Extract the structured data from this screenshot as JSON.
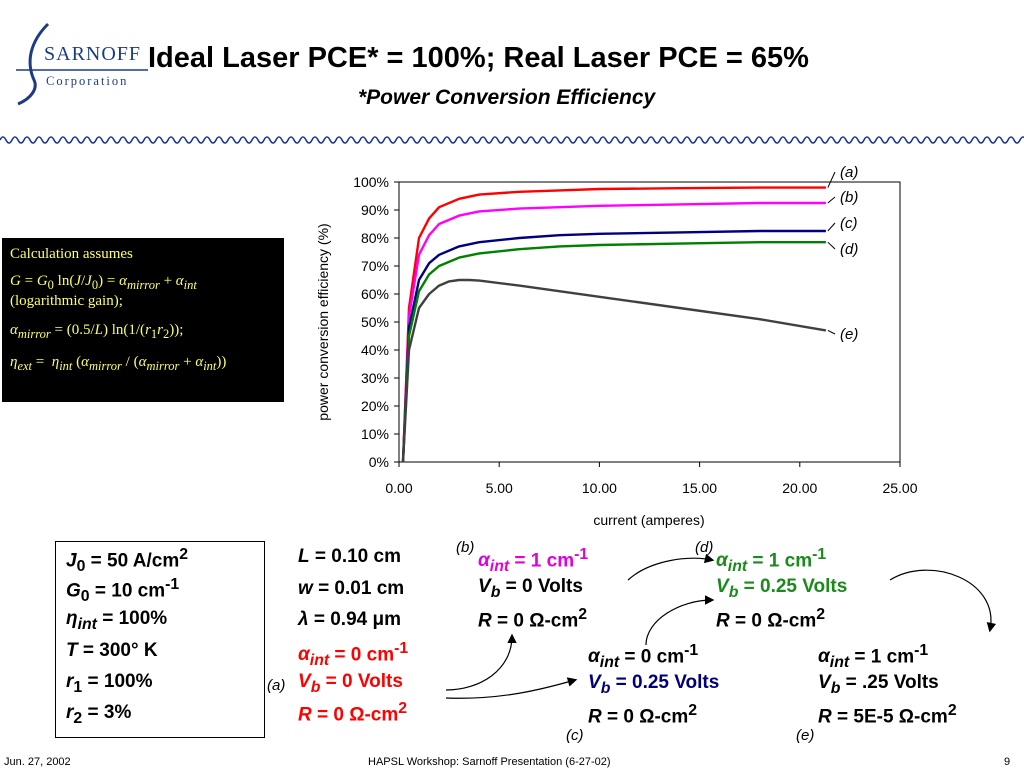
{
  "logo": {
    "line1": "SARNOFF",
    "line2": "Corporation"
  },
  "title": "Ideal Laser PCE* = 100%; Real Laser PCE = 65%",
  "subtitle": "*Power Conversion Efficiency",
  "calc": {
    "heading": "Calculation assumes",
    "gain_suffix": "(logarithmic gain);"
  },
  "chart_data": {
    "type": "line",
    "title": "",
    "xlabel": "current (amperes)",
    "ylabel": "power conversion efficiency (%)",
    "xlim": [
      0,
      25
    ],
    "ylim": [
      0,
      1
    ],
    "x_ticks": [
      "0.00",
      "5.00",
      "10.00",
      "15.00",
      "20.00",
      "25.00"
    ],
    "y_ticks": [
      "0%",
      "10%",
      "20%",
      "30%",
      "40%",
      "50%",
      "60%",
      "70%",
      "80%",
      "90%",
      "100%"
    ],
    "grid": false,
    "series": [
      {
        "name": "(a)",
        "color": "#ff0000",
        "x": [
          0.2,
          0.5,
          1,
          1.5,
          2,
          3,
          4,
          6,
          8,
          10,
          14,
          18,
          21.3
        ],
        "y": [
          0,
          0.55,
          0.8,
          0.87,
          0.91,
          0.94,
          0.955,
          0.965,
          0.97,
          0.975,
          0.978,
          0.98,
          0.98
        ]
      },
      {
        "name": "(b)",
        "color": "#ff00ff",
        "x": [
          0.2,
          0.5,
          1,
          1.5,
          2,
          3,
          4,
          6,
          8,
          10,
          14,
          18,
          21.3
        ],
        "y": [
          0,
          0.52,
          0.74,
          0.81,
          0.85,
          0.88,
          0.895,
          0.905,
          0.91,
          0.915,
          0.92,
          0.925,
          0.925
        ]
      },
      {
        "name": "(c)",
        "color": "#000080",
        "x": [
          0.2,
          0.5,
          1,
          1.5,
          2,
          3,
          4,
          6,
          8,
          10,
          14,
          18,
          21.3
        ],
        "y": [
          0,
          0.48,
          0.65,
          0.71,
          0.74,
          0.77,
          0.785,
          0.8,
          0.81,
          0.815,
          0.82,
          0.825,
          0.825
        ]
      },
      {
        "name": "(d)",
        "color": "#008000",
        "x": [
          0.2,
          0.5,
          1,
          1.5,
          2,
          3,
          4,
          6,
          8,
          10,
          14,
          18,
          21.3
        ],
        "y": [
          0,
          0.45,
          0.61,
          0.67,
          0.7,
          0.73,
          0.745,
          0.76,
          0.77,
          0.775,
          0.78,
          0.785,
          0.785
        ]
      },
      {
        "name": "(e)",
        "color": "#404040",
        "x": [
          0.2,
          0.5,
          1,
          1.5,
          2,
          2.5,
          3,
          3.5,
          4,
          6,
          8,
          10,
          14,
          18,
          21.3
        ],
        "y": [
          0,
          0.4,
          0.55,
          0.6,
          0.63,
          0.645,
          0.65,
          0.65,
          0.648,
          0.63,
          0.61,
          0.59,
          0.55,
          0.51,
          0.47
        ]
      }
    ]
  },
  "params": {
    "j0_val": "= 50 A/cm",
    "g0_val": "= 10 cm",
    "eta_val": "= 100%",
    "t_val": "= 300° K",
    "r1_val": "= 100%",
    "r2_val": "= 3%",
    "l_val": "= 0.10 cm",
    "w_val": "= 0.01 cm",
    "lambda_val": "= 0.94 μm"
  },
  "cases": {
    "a": {
      "label": "(a)",
      "alpha": "= 0 cm",
      "vb": "= 0 Volts",
      "r": "= 0 Ω-cm"
    },
    "b": {
      "label": "(b)",
      "alpha": "= 1 cm",
      "vb": "= 0 Volts",
      "r": "= 0 Ω-cm"
    },
    "c": {
      "label": "(c)",
      "alpha": "= 0 cm",
      "vb": "= 0.25 Volts",
      "r": "= 0 Ω-cm"
    },
    "d": {
      "label": "(d)",
      "alpha": "= 1 cm",
      "vb": "= 0.25 Volts",
      "r": "= 0 Ω-cm"
    },
    "e": {
      "label": "(e)",
      "alpha": "= 1 cm",
      "vb": "= .25 Volts",
      "r": "= 5E-5 Ω-cm"
    }
  },
  "footer": {
    "date": "Jun. 27, 2002",
    "center": "HAPSL Workshop: Sarnoff Presentation (6-27-02)",
    "page": "9"
  }
}
